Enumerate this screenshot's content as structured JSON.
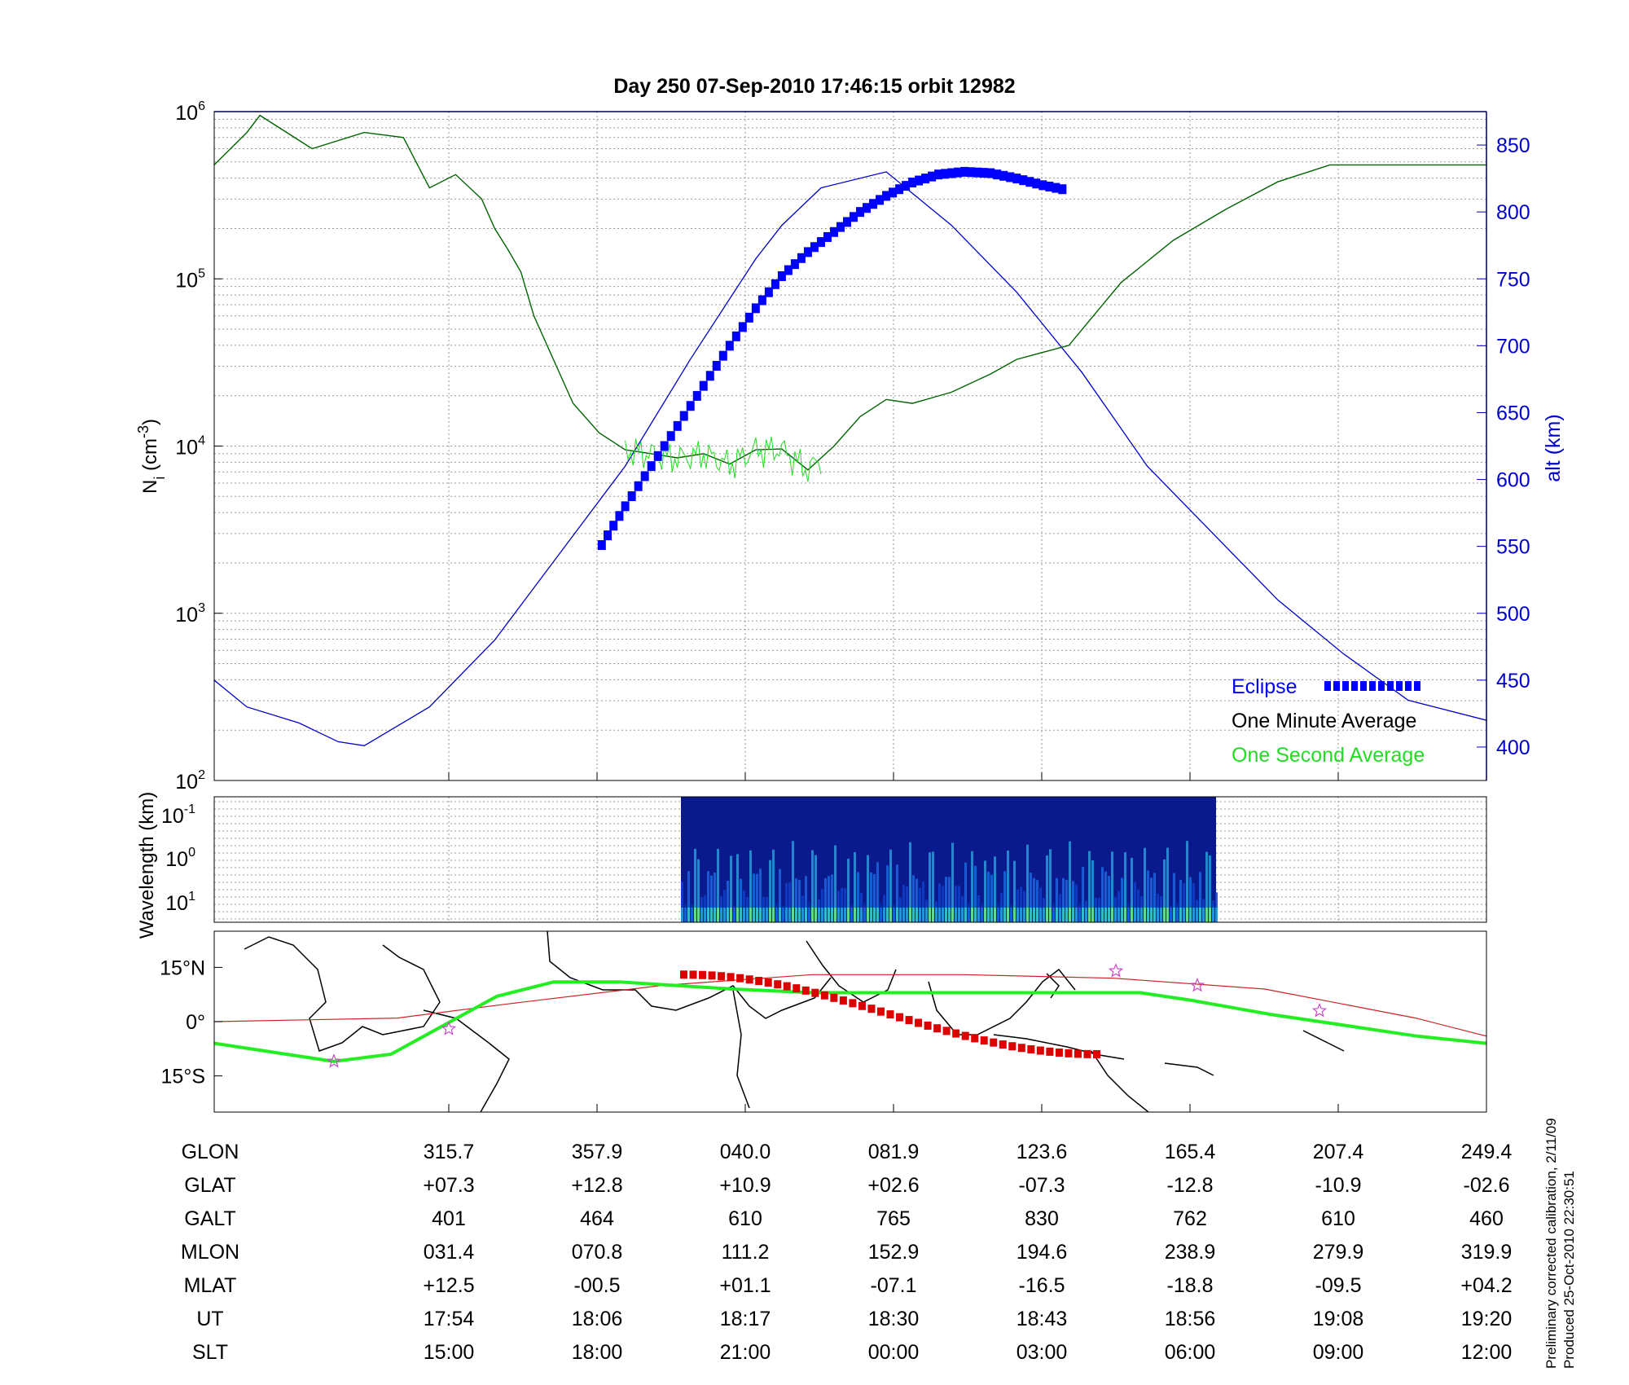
{
  "title": "Day 250  07-Sep-2010 17:46:15   orbit 12982",
  "colors": {
    "density_line": "#006400",
    "second_avg": "#22dd22",
    "altitude": "#0000cc",
    "eclipse": "#0000ff",
    "track_green": "#22ee22",
    "track_red": "#dd0000",
    "trace_red": "#cc2222",
    "star": "#cc44cc",
    "grid": "#999999"
  },
  "footer": {
    "line1": "Preliminary corrected calibration, 2/11/09",
    "line2": "Produced 25-Oct-2010 22:30:51"
  },
  "chart_data": [
    {
      "type": "line",
      "panel": "ion density and altitude",
      "ylabel_html": "N<tspan baseline-shift=\"sub\" font-size=\"18\">i</tspan> (cm<tspan baseline-shift=\"super\" font-size=\"18\">-3</tspan>)",
      "y_ticks_left": [
        "10",
        "10",
        "10",
        "10",
        "10"
      ],
      "y_ticks_left_exp": [
        "6",
        "5",
        "4",
        "3",
        "2"
      ],
      "y_ticks_left_values": [
        1000000,
        100000,
        10000,
        1000,
        100
      ],
      "y2label": "alt (km)",
      "y2_ticks": [
        "850",
        "800",
        "750",
        "700",
        "650",
        "600",
        "550",
        "500",
        "450",
        "400"
      ],
      "ylim": [
        100,
        1000000
      ],
      "y2lim": [
        375,
        875
      ],
      "x_ticks_ut": [
        "17:54",
        "18:06",
        "18:17",
        "18:30",
        "18:43",
        "18:56",
        "19:08",
        "19:20"
      ],
      "xlim_minutes": [
        -11.5,
        86
      ],
      "legend": [
        "Eclipse",
        "One Minute Average",
        "One Second Average"
      ],
      "legend_position": "lower-right",
      "grid": true,
      "series": [
        {
          "name": "One Minute Average",
          "x": [
            -11.5,
            -9,
            -8,
            -4,
            0,
            3,
            5,
            7,
            9,
            10,
            11,
            12,
            13,
            16,
            18,
            20,
            22,
            24,
            26,
            28,
            30,
            32,
            34,
            36,
            38,
            40,
            42,
            45,
            48,
            50,
            54,
            58,
            62,
            66,
            70,
            74,
            78,
            82,
            86
          ],
          "y": [
            480000,
            750000,
            950000,
            600000,
            750000,
            700000,
            350000,
            420000,
            300000,
            200000,
            150000,
            110000,
            60000,
            18000,
            12000,
            9500,
            9000,
            8500,
            9000,
            7800,
            9500,
            9600,
            7200,
            10000,
            15000,
            19000,
            18000,
            21000,
            27000,
            33000,
            40000,
            95000,
            170000,
            260000,
            380000,
            480000,
            480000,
            480000,
            480000
          ]
        },
        {
          "name": "altitude",
          "axis": "right",
          "x": [
            -11.5,
            -9,
            -5,
            -2,
            0,
            5,
            10,
            15,
            20,
            25,
            30,
            32,
            35,
            40,
            45,
            50,
            55,
            60,
            65,
            70,
            75,
            80,
            86
          ],
          "y": [
            450,
            430,
            418,
            404,
            401,
            430,
            480,
            545,
            610,
            690,
            765,
            790,
            818,
            830,
            790,
            740,
            680,
            610,
            560,
            510,
            470,
            435,
            420
          ]
        },
        {
          "name": "Eclipse",
          "axis": "right",
          "x": [
            18.2,
            20,
            22,
            24,
            26,
            28,
            30,
            32,
            34,
            36,
            38,
            40,
            42,
            44,
            46,
            48,
            50,
            52,
            54
          ],
          "y": [
            551,
            580,
            610,
            640,
            670,
            700,
            728,
            752,
            770,
            785,
            800,
            812,
            822,
            828,
            830,
            829,
            825,
            820,
            816
          ]
        }
      ]
    },
    {
      "type": "heatmap",
      "panel": "spectrogram",
      "ylabel": "Wavelength (km)",
      "y_ticks": [
        "10",
        "10",
        "10"
      ],
      "y_ticks_exp": [
        "-1",
        "0",
        "1"
      ],
      "x_ticks_ut": [
        "17:54",
        "18:06",
        "18:17",
        "18:30",
        "18:43",
        "18:56",
        "19:08",
        "19:20"
      ],
      "data_span_ut": [
        "18:19",
        "18:59"
      ]
    },
    {
      "type": "line",
      "panel": "ground track map",
      "y_ticks": [
        "15°N",
        "0°",
        "15°S"
      ],
      "y_ticks_values": [
        15,
        0,
        -15
      ],
      "ylim": [
        -25,
        25
      ],
      "xlim_deg": [
        260.7,
        429.4
      ],
      "series": [
        {
          "name": "magnetic equator",
          "x": [
            260.7,
            280,
            300,
            320,
            340,
            360,
            380,
            400,
            420,
            429.4
          ],
          "y": [
            -9,
            -12,
            -13,
            -5,
            9,
            13,
            12,
            10,
            9,
            8
          ]
        },
        {
          "name": "dip equator",
          "x": [
            260.7,
            285,
            300,
            320,
            340,
            360,
            380,
            400,
            420,
            429.4
          ],
          "y": [
            0,
            1,
            5,
            10,
            13,
            13,
            12,
            9,
            1,
            -4
          ]
        }
      ],
      "markers": "stars"
    }
  ],
  "table": {
    "rows": [
      {
        "label": "GLON",
        "values": [
          "315.7",
          "357.9",
          "040.0",
          "081.9",
          "123.6",
          "165.4",
          "207.4",
          "249.4"
        ]
      },
      {
        "label": "GLAT",
        "values": [
          "+07.3",
          "+12.8",
          "+10.9",
          "+02.6",
          "-07.3",
          "-12.8",
          "-10.9",
          "-02.6"
        ]
      },
      {
        "label": "GALT",
        "values": [
          "401",
          "464",
          "610",
          "765",
          "830",
          "762",
          "610",
          "460"
        ]
      },
      {
        "label": "MLON",
        "values": [
          "031.4",
          "070.8",
          "111.2",
          "152.9",
          "194.6",
          "238.9",
          "279.9",
          "319.9"
        ]
      },
      {
        "label": "MLAT",
        "values": [
          "+12.5",
          "-00.5",
          "+01.1",
          "-07.1",
          "-16.5",
          "-18.8",
          "-09.5",
          "+04.2"
        ]
      },
      {
        "label": "UT",
        "values": [
          "17:54",
          "18:06",
          "18:17",
          "18:30",
          "18:43",
          "18:56",
          "19:08",
          "19:20"
        ]
      },
      {
        "label": "SLT",
        "values": [
          "15:00",
          "18:00",
          "21:00",
          "00:00",
          "03:00",
          "06:00",
          "09:00",
          "12:00"
        ]
      }
    ]
  }
}
